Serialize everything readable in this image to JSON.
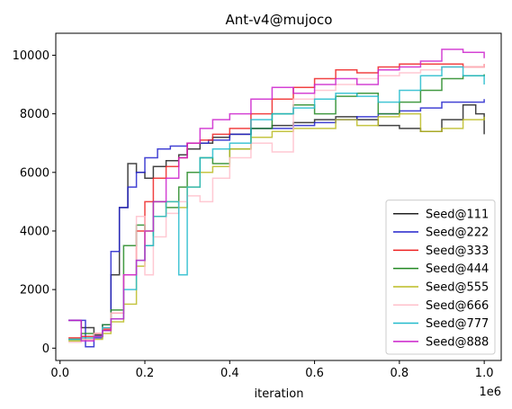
{
  "chart_data": {
    "type": "line",
    "title": "Ant-v4@mujoco",
    "xlabel": "iteration",
    "ylabel": "",
    "x_offset_label": "1e6",
    "xlim": [
      -0.01,
      1.04
    ],
    "ylim": [
      -420,
      10750
    ],
    "xticks": [
      0.0,
      0.2,
      0.4,
      0.6,
      0.8,
      1.0
    ],
    "xtick_labels": [
      "0.0",
      "0.2",
      "0.4",
      "0.6",
      "0.8",
      "1.0"
    ],
    "yticks": [
      0,
      2000,
      4000,
      6000,
      8000,
      10000
    ],
    "ytick_labels": [
      "0",
      "2000",
      "4000",
      "6000",
      "8000",
      "10000"
    ],
    "legend_position": "lower-right",
    "grid": false,
    "series": [
      {
        "name": "Seed@111",
        "color": "#222222",
        "x": [
          0.02,
          0.05,
          0.08,
          0.1,
          0.12,
          0.14,
          0.16,
          0.18,
          0.2,
          0.22,
          0.25,
          0.28,
          0.3,
          0.33,
          0.36,
          0.4,
          0.45,
          0.5,
          0.55,
          0.6,
          0.65,
          0.7,
          0.75,
          0.8,
          0.85,
          0.9,
          0.95,
          0.98,
          1.0
        ],
        "y": [
          950,
          700,
          450,
          600,
          2500,
          4800,
          6300,
          6000,
          5800,
          6200,
          6400,
          6600,
          6800,
          7000,
          7200,
          7300,
          7500,
          7600,
          7700,
          7800,
          7900,
          7800,
          7600,
          7500,
          7400,
          7800,
          8300,
          8000,
          7300
        ]
      },
      {
        "name": "Seed@222",
        "color": "#2222cc",
        "x": [
          0.02,
          0.04,
          0.06,
          0.08,
          0.1,
          0.12,
          0.14,
          0.16,
          0.18,
          0.2,
          0.23,
          0.26,
          0.3,
          0.35,
          0.4,
          0.45,
          0.5,
          0.55,
          0.6,
          0.65,
          0.7,
          0.75,
          0.8,
          0.85,
          0.9,
          0.95,
          1.0
        ],
        "y": [
          950,
          950,
          50,
          350,
          800,
          3300,
          4800,
          5500,
          6000,
          6500,
          6800,
          6900,
          7000,
          7100,
          7300,
          7500,
          7500,
          7600,
          7700,
          7800,
          7900,
          8000,
          8100,
          8200,
          8400,
          8400,
          8500
        ]
      },
      {
        "name": "Seed@333",
        "color": "#ee2222",
        "x": [
          0.02,
          0.05,
          0.08,
          0.1,
          0.12,
          0.15,
          0.18,
          0.2,
          0.22,
          0.25,
          0.28,
          0.3,
          0.33,
          0.36,
          0.4,
          0.45,
          0.5,
          0.55,
          0.6,
          0.65,
          0.7,
          0.75,
          0.8,
          0.85,
          0.9,
          0.95,
          1.0
        ],
        "y": [
          350,
          400,
          500,
          650,
          1200,
          2500,
          4000,
          5000,
          5800,
          6200,
          6500,
          7000,
          7100,
          7300,
          7500,
          8000,
          8500,
          8900,
          9200,
          9500,
          9400,
          9600,
          9700,
          9700,
          9700,
          9600,
          9700
        ]
      },
      {
        "name": "Seed@444",
        "color": "#228822",
        "x": [
          0.02,
          0.05,
          0.08,
          0.1,
          0.12,
          0.15,
          0.18,
          0.2,
          0.22,
          0.25,
          0.28,
          0.3,
          0.33,
          0.36,
          0.4,
          0.45,
          0.5,
          0.55,
          0.6,
          0.65,
          0.7,
          0.75,
          0.8,
          0.85,
          0.9,
          0.95,
          1.0
        ],
        "y": [
          300,
          500,
          400,
          800,
          1300,
          3500,
          4200,
          3500,
          5000,
          4800,
          5500,
          6000,
          6500,
          6300,
          6800,
          7500,
          8000,
          8300,
          8000,
          8600,
          8700,
          8000,
          8400,
          8800,
          9200,
          9300,
          9350
        ]
      },
      {
        "name": "Seed@555",
        "color": "#bbbb22",
        "x": [
          0.02,
          0.05,
          0.08,
          0.1,
          0.12,
          0.15,
          0.18,
          0.2,
          0.22,
          0.25,
          0.28,
          0.3,
          0.33,
          0.36,
          0.4,
          0.45,
          0.5,
          0.55,
          0.6,
          0.65,
          0.7,
          0.75,
          0.8,
          0.85,
          0.9,
          0.95,
          1.0
        ],
        "y": [
          250,
          300,
          300,
          500,
          900,
          1500,
          2800,
          4000,
          4500,
          5000,
          4800,
          5500,
          6000,
          6200,
          6800,
          7200,
          7400,
          7500,
          7500,
          7800,
          7600,
          7900,
          8000,
          7400,
          7500,
          7800,
          7900
        ]
      },
      {
        "name": "Seed@666",
        "color": "#ffc0cb",
        "x": [
          0.02,
          0.05,
          0.08,
          0.1,
          0.12,
          0.15,
          0.18,
          0.2,
          0.22,
          0.25,
          0.28,
          0.3,
          0.33,
          0.36,
          0.4,
          0.45,
          0.5,
          0.55,
          0.6,
          0.65,
          0.7,
          0.75,
          0.8,
          0.85,
          0.9,
          0.95,
          1.0
        ],
        "y": [
          200,
          300,
          500,
          700,
          1200,
          2500,
          4500,
          2500,
          3800,
          4600,
          5000,
          5200,
          5000,
          5800,
          6500,
          7000,
          6700,
          8500,
          8800,
          9000,
          9200,
          9300,
          9400,
          9500,
          9600,
          9600,
          9700
        ]
      },
      {
        "name": "Seed@777",
        "color": "#22bbcc",
        "x": [
          0.02,
          0.05,
          0.08,
          0.1,
          0.12,
          0.15,
          0.18,
          0.2,
          0.22,
          0.25,
          0.28,
          0.3,
          0.33,
          0.36,
          0.4,
          0.45,
          0.5,
          0.55,
          0.6,
          0.65,
          0.7,
          0.75,
          0.8,
          0.85,
          0.9,
          0.95,
          1.0
        ],
        "y": [
          300,
          350,
          400,
          700,
          1000,
          2000,
          3000,
          3500,
          4500,
          5000,
          2500,
          5500,
          6500,
          6800,
          7000,
          7800,
          8000,
          8200,
          8500,
          8700,
          8600,
          8400,
          8800,
          9300,
          9600,
          9300,
          9000
        ]
      },
      {
        "name": "Seed@888",
        "color": "#cc22cc",
        "x": [
          0.02,
          0.05,
          0.08,
          0.1,
          0.12,
          0.15,
          0.18,
          0.2,
          0.22,
          0.25,
          0.28,
          0.3,
          0.33,
          0.36,
          0.4,
          0.45,
          0.5,
          0.55,
          0.6,
          0.65,
          0.7,
          0.75,
          0.8,
          0.85,
          0.9,
          0.95,
          1.0
        ],
        "y": [
          950,
          250,
          400,
          600,
          1000,
          2500,
          3000,
          4000,
          5000,
          5800,
          6500,
          7000,
          7500,
          7800,
          8000,
          8500,
          8900,
          8700,
          9000,
          9200,
          9000,
          9500,
          9600,
          9800,
          10200,
          10100,
          9900
        ]
      }
    ]
  }
}
